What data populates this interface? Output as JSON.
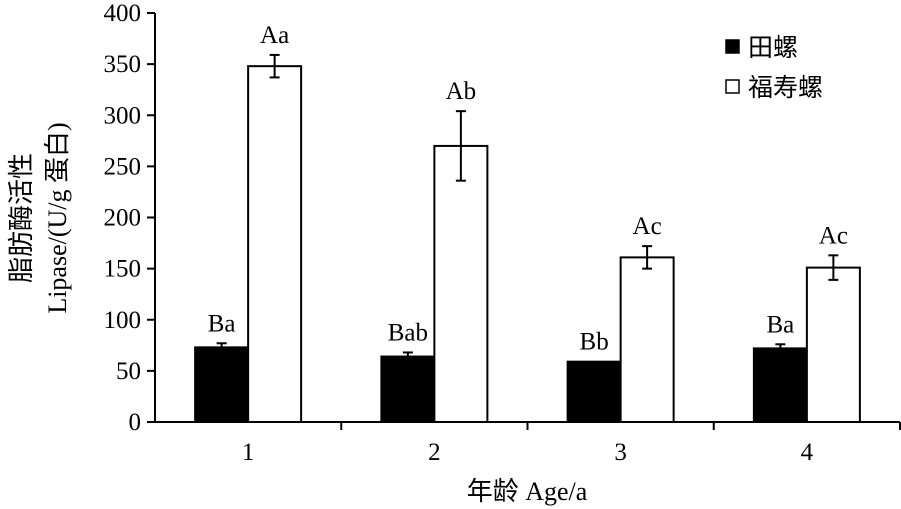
{
  "chart_data": {
    "type": "bar",
    "categories": [
      "1",
      "2",
      "3",
      "4"
    ],
    "series": [
      {
        "name": "田螺",
        "values": [
          73,
          64,
          59,
          72
        ],
        "errors": [
          4,
          4,
          0,
          4
        ],
        "labels": [
          "Ba",
          "Bab",
          "Bb",
          "Ba"
        ],
        "color": "#000000"
      },
      {
        "name": "福寿螺",
        "values": [
          348,
          270,
          161,
          151
        ],
        "errors": [
          11,
          34,
          11,
          12
        ],
        "labels": [
          "Aa",
          "Ab",
          "Ac",
          "Ac"
        ],
        "color": "#ffffff"
      }
    ],
    "ylim": [
      0,
      400
    ],
    "yticks": [
      0,
      50,
      100,
      150,
      200,
      250,
      300,
      350,
      400
    ],
    "ylabel_line1": "脂肪酶活性",
    "ylabel_line2": "Lipase/(U/g 蛋白)",
    "xlabel": "年龄 Age/a",
    "legend_position": "top-right",
    "grid": false
  }
}
